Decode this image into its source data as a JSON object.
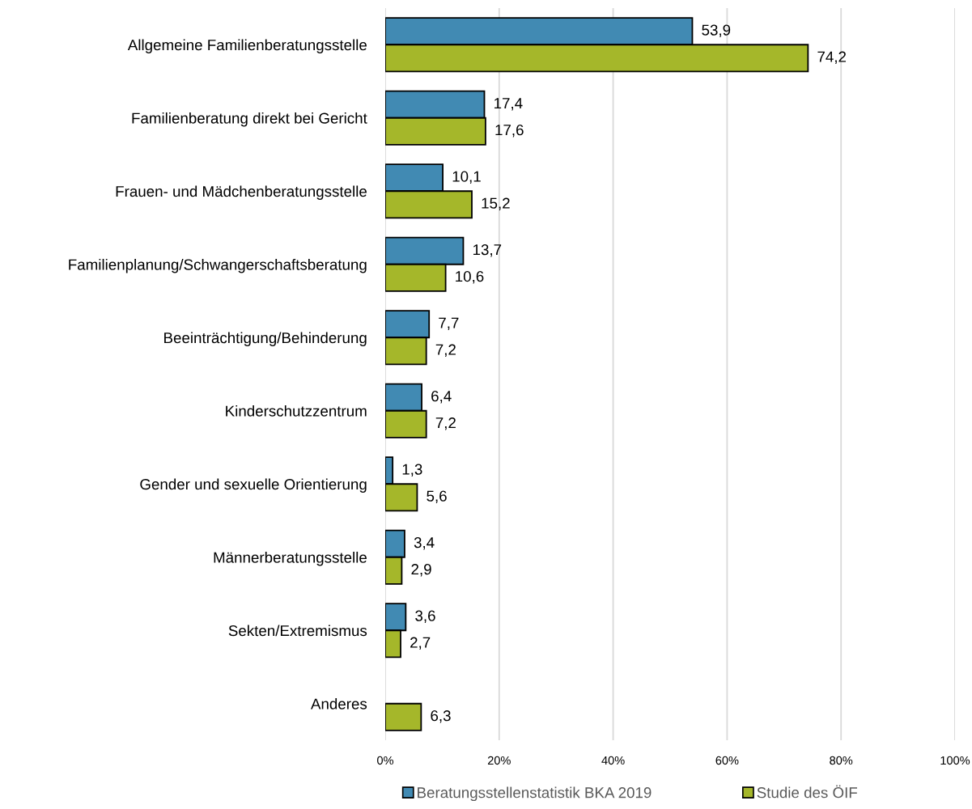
{
  "chart_data": {
    "type": "bar",
    "orientation": "horizontal",
    "categories": [
      "Allgemeine Familienberatungsstelle",
      "Familienberatung direkt bei Gericht",
      "Frauen- und Mädchenberatungsstelle",
      "Familienplanung/Schwangerschaftsberatung",
      "Beeinträchtigung/Behinderung",
      "Kinderschutzzentrum",
      "Gender und sexuelle Orientierung",
      "Männerberatungsstelle",
      "Sekten/Extremismus",
      "Anderes"
    ],
    "series": [
      {
        "name": "Beratungsstellenstatistik BKA 2019",
        "color": "#418ab3",
        "values": [
          53.9,
          17.4,
          10.1,
          13.7,
          7.7,
          6.4,
          1.3,
          3.4,
          3.6,
          null
        ],
        "value_labels": [
          "53,9",
          "17,4",
          "10,1",
          "13,7",
          "7,7",
          "6,4",
          "1,3",
          "3,4",
          "3,6",
          null
        ]
      },
      {
        "name": "Studie des ÖIF",
        "color": "#a5b72a",
        "values": [
          74.2,
          17.6,
          15.2,
          10.6,
          7.2,
          7.2,
          5.6,
          2.9,
          2.7,
          6.3
        ],
        "value_labels": [
          "74,2",
          "17,6",
          "15,2",
          "10,6",
          "7,2",
          "7,2",
          "5,6",
          "2,9",
          "2,7",
          "6,3"
        ]
      }
    ],
    "xlim": [
      0,
      100
    ],
    "xticks": [
      {
        "value": 0,
        "label": "0%"
      },
      {
        "value": 20,
        "label": "20%"
      },
      {
        "value": 40,
        "label": "40%"
      },
      {
        "value": 60,
        "label": "60%"
      },
      {
        "value": 80,
        "label": "80%"
      },
      {
        "value": 100,
        "label": "100%"
      }
    ],
    "grid": "x",
    "legend": "bottom"
  }
}
